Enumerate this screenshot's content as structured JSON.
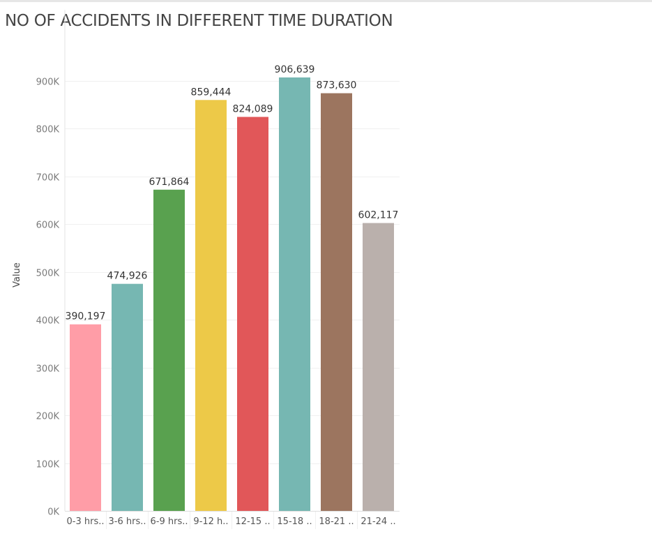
{
  "chart_data": {
    "type": "bar",
    "title": "NO OF ACCIDENTS IN DIFFERENT TIME DURATION",
    "ylabel": "Value",
    "xlabel": "",
    "categories": [
      "0-3 hrs..",
      "3-6 hrs..",
      "6-9 hrs..",
      "9-12 h..",
      "12-15 ..",
      "15-18 ..",
      "18-21 ..",
      "21-24 .."
    ],
    "values": [
      390197,
      474926,
      671864,
      859444,
      824089,
      906639,
      873630,
      602117
    ],
    "data_labels": [
      "390,197",
      "474,926",
      "671,864",
      "859,444",
      "824,089",
      "906,639",
      "873,630",
      "602,117"
    ],
    "colors": [
      "#ff9da7",
      "#76b7b2",
      "#59a14f",
      "#edc948",
      "#e15759",
      "#76b7b2",
      "#9c755f",
      "#bab0ac"
    ],
    "yticks": [
      0,
      100000,
      200000,
      300000,
      400000,
      500000,
      600000,
      700000,
      800000,
      900000
    ],
    "ytick_labels": [
      "0K",
      "100K",
      "200K",
      "300K",
      "400K",
      "500K",
      "600K",
      "700K",
      "800K",
      "900K"
    ],
    "ylim": [
      0,
      960000
    ],
    "grid": true,
    "legend": "none"
  }
}
